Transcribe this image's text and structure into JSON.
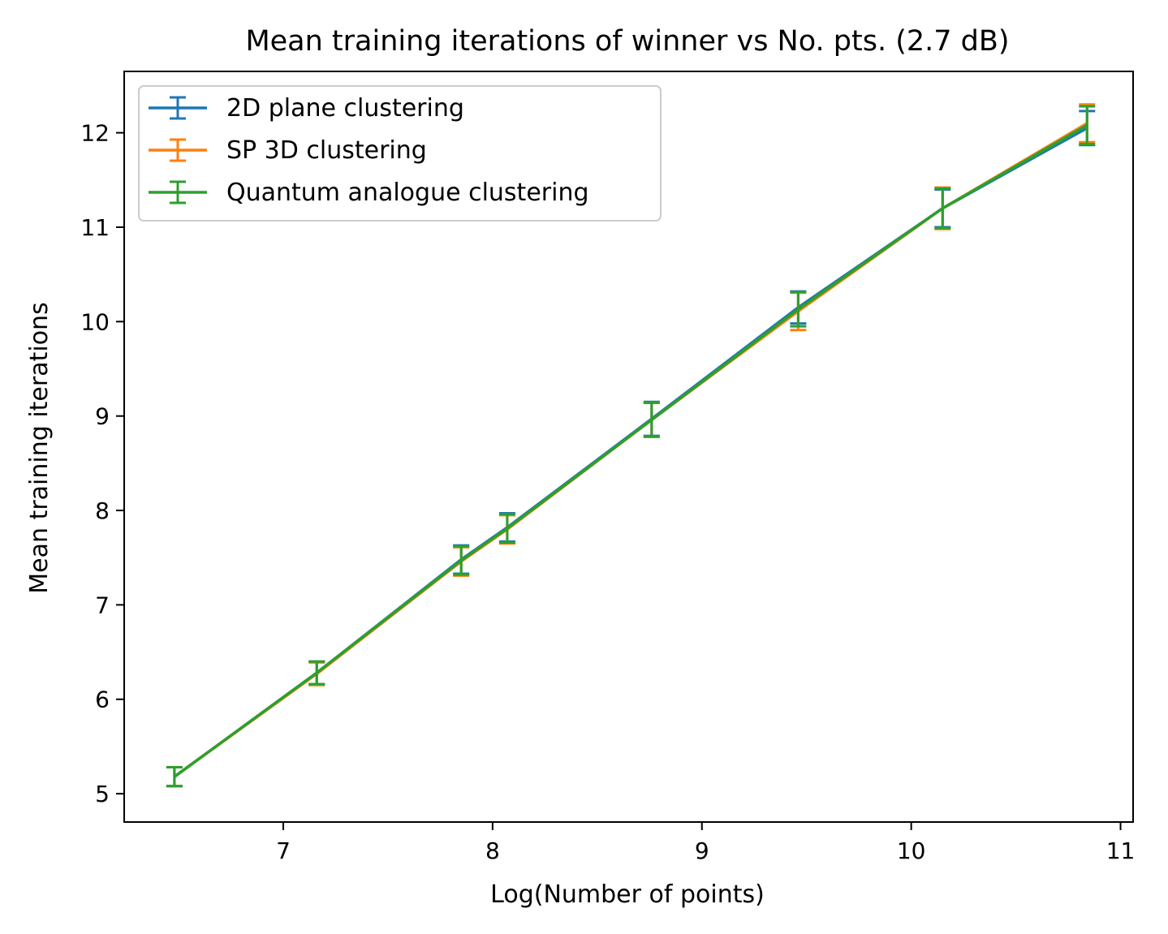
{
  "chart_data": {
    "type": "line",
    "title": "Mean training iterations of winner vs No. pts. (2.7 dB)",
    "xlabel": "Log(Number of points)",
    "ylabel": "Mean training iterations",
    "xlim": [
      6.24,
      11.06
    ],
    "ylim": [
      4.7,
      12.65
    ],
    "xticks": [
      7,
      8,
      9,
      10,
      11
    ],
    "yticks": [
      5,
      6,
      7,
      8,
      9,
      10,
      11,
      12
    ],
    "grid": false,
    "legend_position": "top-left",
    "x": [
      6.48,
      7.16,
      7.85,
      8.07,
      8.76,
      9.46,
      10.15,
      10.84
    ],
    "series": [
      {
        "name": "2D plane clustering",
        "color": "#1f77b4",
        "values": [
          5.18,
          6.28,
          7.48,
          7.82,
          8.97,
          10.15,
          11.2,
          12.05
        ],
        "errors": [
          0.1,
          0.12,
          0.15,
          0.15,
          0.18,
          0.17,
          0.2,
          0.18
        ]
      },
      {
        "name": "SP 3D clustering",
        "color": "#ff7f0e",
        "values": [
          5.18,
          6.27,
          7.46,
          7.8,
          8.96,
          10.11,
          11.2,
          12.1
        ],
        "errors": [
          0.1,
          0.12,
          0.15,
          0.15,
          0.18,
          0.2,
          0.22,
          0.2
        ]
      },
      {
        "name": "Quantum analogue clustering",
        "color": "#2ca02c",
        "values": [
          5.18,
          6.28,
          7.47,
          7.81,
          8.96,
          10.13,
          11.2,
          12.08
        ],
        "errors": [
          0.1,
          0.12,
          0.15,
          0.15,
          0.18,
          0.18,
          0.21,
          0.2
        ]
      }
    ]
  }
}
